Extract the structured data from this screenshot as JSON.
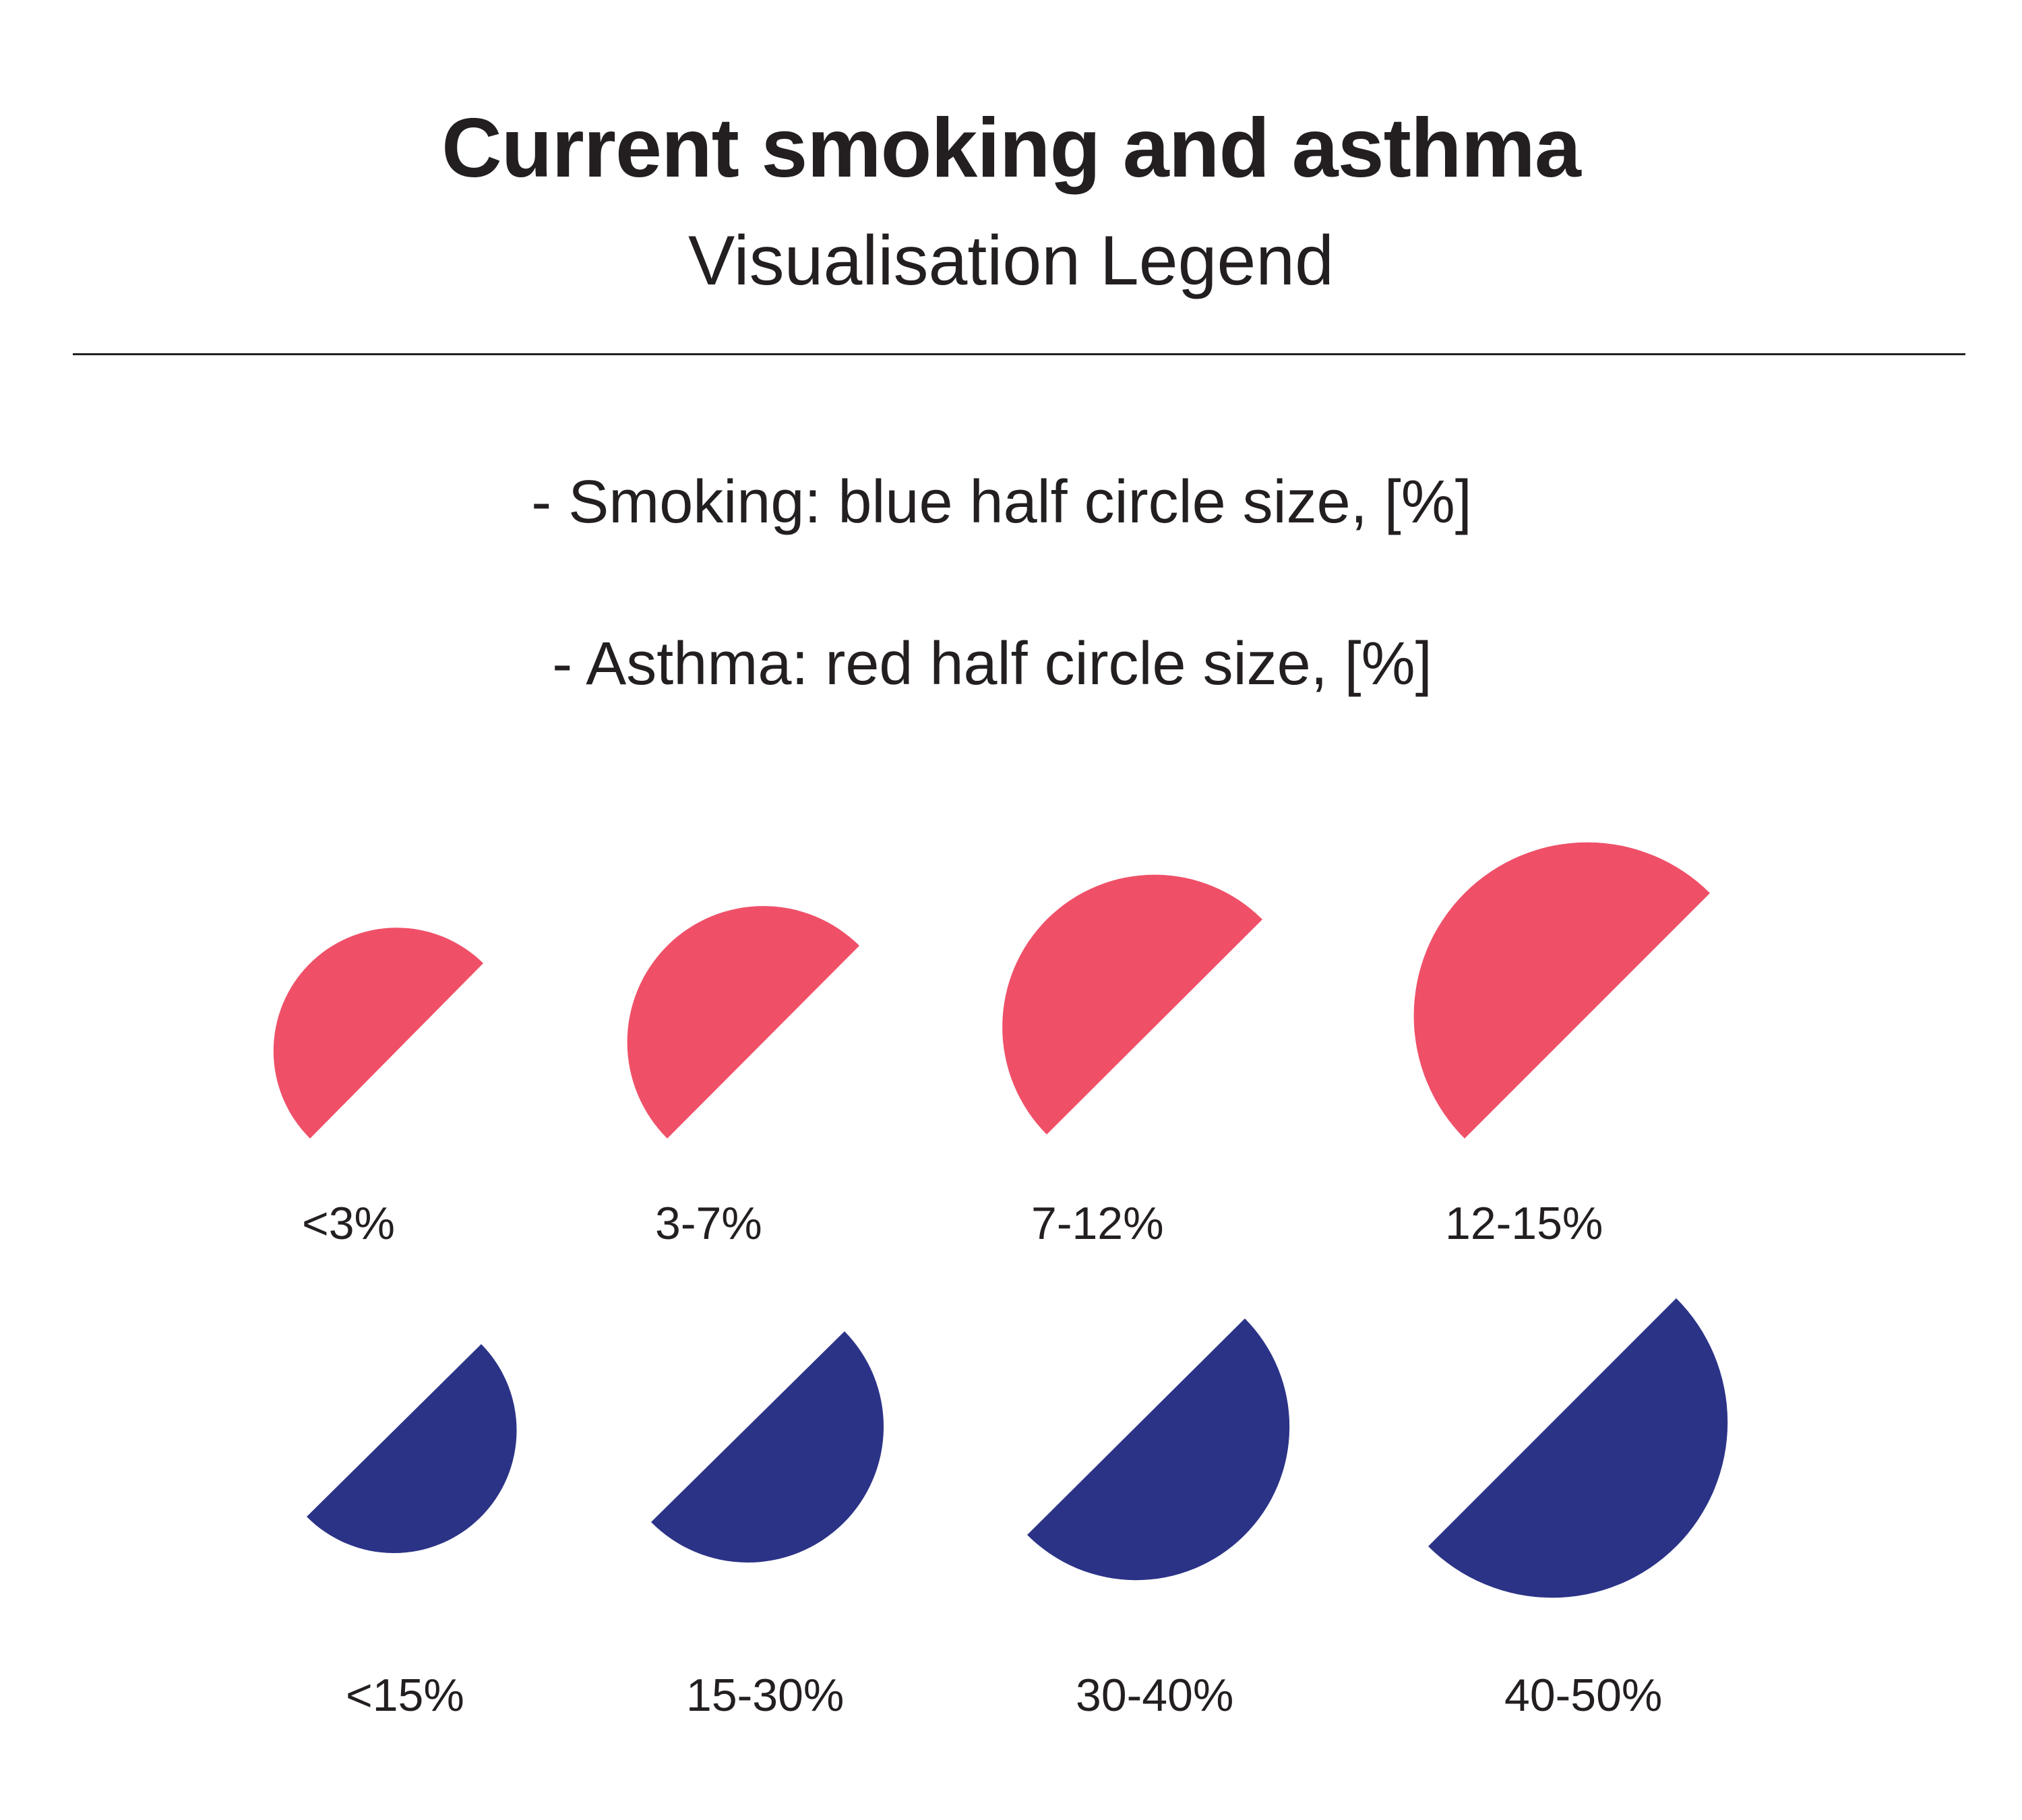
{
  "header": {
    "title": "Current smoking and asthma",
    "subtitle": "Visualisation Legend"
  },
  "descriptions": {
    "smoking": "- Smoking: blue half circle size, [%]",
    "asthma": "- Asthma: red half circle size, [%]"
  },
  "colors": {
    "asthma": "#ef5068",
    "smoking": "#2b3387",
    "text": "#231f20"
  },
  "legend": {
    "asthma": [
      {
        "label": "<3%"
      },
      {
        "label": "3-7%"
      },
      {
        "label": "7-12%"
      },
      {
        "label": "12-15%"
      }
    ],
    "smoking": [
      {
        "label": "<15%"
      },
      {
        "label": "15-30%"
      },
      {
        "label": "30-40%"
      },
      {
        "label": "40-50%"
      }
    ]
  }
}
